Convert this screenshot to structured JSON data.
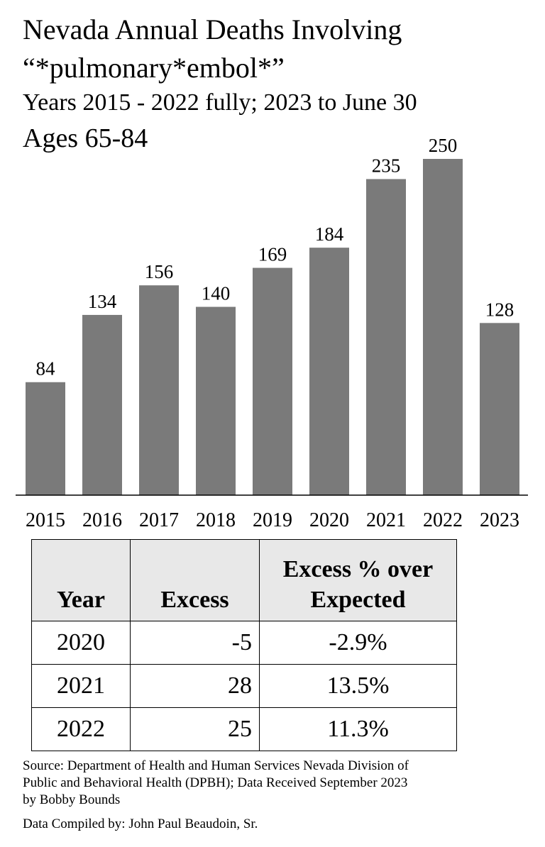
{
  "title": {
    "line1": "Nevada Annual Deaths Involving",
    "line2": "“*pulmonary*embol*”",
    "subtitle": "Years 2015 - 2022 fully; 2023 to June 30",
    "ages": "Ages 65-84"
  },
  "chart_data": {
    "type": "bar",
    "categories": [
      "2015",
      "2016",
      "2017",
      "2018",
      "2019",
      "2020",
      "2021",
      "2022",
      "2023"
    ],
    "values": [
      84,
      134,
      156,
      140,
      169,
      184,
      235,
      250,
      128
    ],
    "title": "Nevada Annual Deaths Involving “*pulmonary*embol*”",
    "xlabel": "",
    "ylabel": "",
    "ylim": [
      0,
      250
    ],
    "bar_color": "#7a7a7a",
    "grid": false,
    "legend": "none"
  },
  "table": {
    "headers": [
      "Year",
      "Excess",
      "Excess % over Expected"
    ],
    "rows": [
      [
        "2020",
        "-5",
        "-2.9%"
      ],
      [
        "2021",
        "28",
        "13.5%"
      ],
      [
        "2022",
        "25",
        "11.3%"
      ]
    ]
  },
  "source": {
    "line1": "Source:  Department of Health and Human Services Nevada Division of",
    "line2": "Public and Behavioral Health (DPBH); Data Received September 2023",
    "line3": "by Bobby Bounds",
    "compiled": "Data Compiled by:  John Paul Beaudoin, Sr."
  }
}
